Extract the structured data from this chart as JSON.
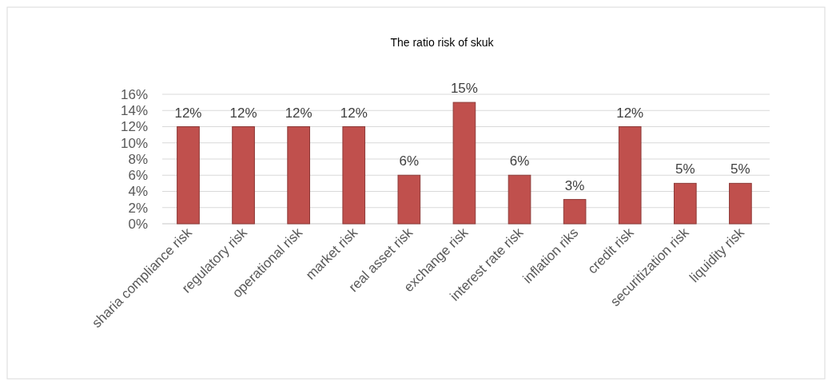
{
  "chart_data": {
    "type": "bar",
    "title": "The ratio risk of skuk",
    "categories": [
      "sharia compliance risk",
      "regulatory risk",
      "operational risk",
      "market risk",
      "real asset risk",
      "exchange risk",
      "interest rate risk",
      "inflation riks",
      "credit risk",
      "securitization risk",
      "liquidity risk"
    ],
    "values": [
      12,
      12,
      12,
      12,
      6,
      15,
      6,
      3,
      12,
      5,
      5
    ],
    "value_labels": [
      "12%",
      "12%",
      "12%",
      "12%",
      "6%",
      "15%",
      "6%",
      "3%",
      "12%",
      "5%",
      "5%"
    ],
    "color": "#c0504d",
    "ylim": [
      0,
      16
    ],
    "yticks": [
      {
        "value": 0,
        "label": "0%"
      },
      {
        "value": 2,
        "label": "2%"
      },
      {
        "value": 4,
        "label": "4%"
      },
      {
        "value": 6,
        "label": "6%"
      },
      {
        "value": 8,
        "label": "8%"
      },
      {
        "value": 10,
        "label": "10%"
      },
      {
        "value": 12,
        "label": "12%"
      },
      {
        "value": 14,
        "label": "14%"
      },
      {
        "value": 16,
        "label": "16%"
      }
    ],
    "grid": "y"
  }
}
